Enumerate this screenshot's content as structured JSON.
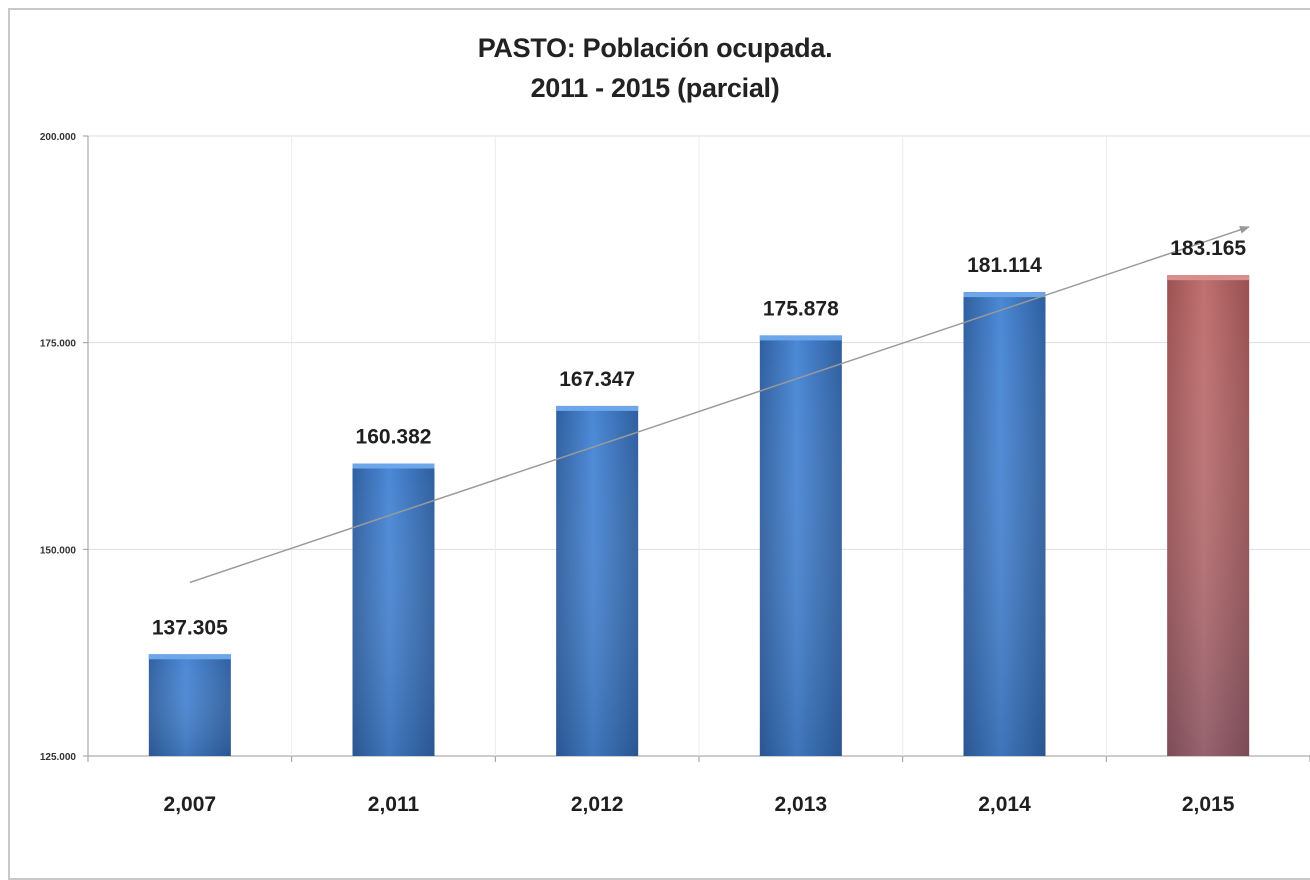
{
  "chart_data": {
    "type": "bar",
    "title_lines": [
      "PASTO: Población ocupada.",
      "2011 - 2015 (parcial)"
    ],
    "categories": [
      "2,007",
      "2,011",
      "2,012",
      "2,013",
      "2,014",
      "2,015"
    ],
    "values": [
      137305,
      160382,
      167347,
      175878,
      181114,
      183165
    ],
    "data_labels": [
      "137.305",
      "160.382",
      "167.347",
      "175.878",
      "181.114",
      "183.165"
    ],
    "ylim": [
      125000,
      200000
    ],
    "yticks": [
      {
        "value": 125000,
        "label": "125.000"
      },
      {
        "value": 150000,
        "label": "150.000"
      },
      {
        "value": 175000,
        "label": "175.000"
      },
      {
        "value": 200000,
        "label": "200.000"
      }
    ],
    "grid": true,
    "trendline": {
      "from_value": 146000,
      "to_value": 189000
    },
    "colors": {
      "bar": "#3f78c4",
      "bar_highlight": "#b86a6a",
      "grid": "#dedede",
      "trend": "#9a9a9a"
    },
    "highlight_index": 5
  }
}
